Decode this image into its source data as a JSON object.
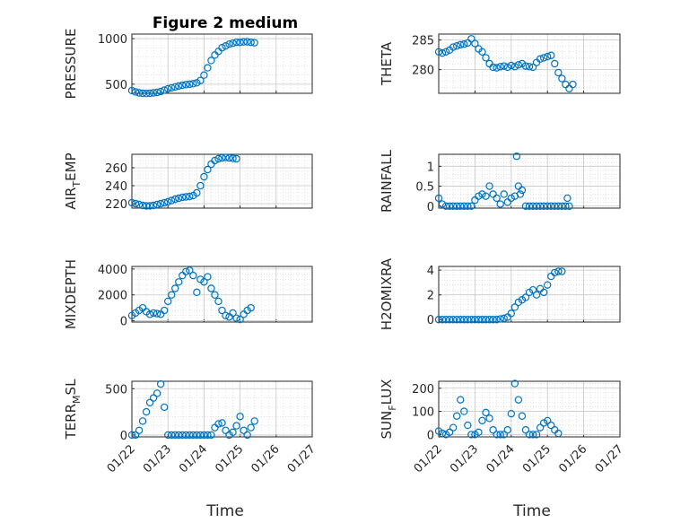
{
  "figure": {
    "title": "Figure 2 medium",
    "xlabel": "Time",
    "marker_color": "#0072BD",
    "grid": true,
    "x_tick_labels": [
      "01/22",
      "01/23",
      "01/24",
      "01/25",
      "01/26",
      "01/27"
    ]
  },
  "chart_data": [
    {
      "type": "scatter",
      "ylabel": "PRESSURE",
      "yticks": [
        500,
        1000
      ],
      "ylim": [
        400,
        1050
      ],
      "xlim": [
        0,
        5
      ],
      "points": [
        [
          0.0,
          430
        ],
        [
          0.1,
          415
        ],
        [
          0.2,
          405
        ],
        [
          0.3,
          400
        ],
        [
          0.4,
          398
        ],
        [
          0.5,
          400
        ],
        [
          0.6,
          405
        ],
        [
          0.7,
          410
        ],
        [
          0.8,
          420
        ],
        [
          0.9,
          435
        ],
        [
          1.0,
          450
        ],
        [
          1.1,
          460
        ],
        [
          1.2,
          470
        ],
        [
          1.3,
          480
        ],
        [
          1.4,
          488
        ],
        [
          1.5,
          495
        ],
        [
          1.6,
          500
        ],
        [
          1.7,
          505
        ],
        [
          1.8,
          515
        ],
        [
          1.9,
          540
        ],
        [
          2.0,
          600
        ],
        [
          2.1,
          680
        ],
        [
          2.2,
          760
        ],
        [
          2.3,
          820
        ],
        [
          2.4,
          860
        ],
        [
          2.5,
          900
        ],
        [
          2.6,
          920
        ],
        [
          2.7,
          940
        ],
        [
          2.8,
          950
        ],
        [
          2.9,
          960
        ],
        [
          3.0,
          960
        ],
        [
          3.1,
          965
        ],
        [
          3.2,
          965
        ],
        [
          3.3,
          960
        ],
        [
          3.4,
          955
        ]
      ]
    },
    {
      "type": "scatter",
      "ylabel": "THETA",
      "yticks": [
        280,
        285
      ],
      "ylim": [
        276,
        286
      ],
      "xlim": [
        0,
        5
      ],
      "points": [
        [
          0.0,
          283
        ],
        [
          0.1,
          282.8
        ],
        [
          0.2,
          283
        ],
        [
          0.3,
          283.3
        ],
        [
          0.4,
          283.8
        ],
        [
          0.5,
          284
        ],
        [
          0.6,
          284.2
        ],
        [
          0.7,
          284.3
        ],
        [
          0.8,
          284.5
        ],
        [
          0.9,
          285.2
        ],
        [
          1.0,
          284.4
        ],
        [
          1.1,
          283.5
        ],
        [
          1.2,
          283
        ],
        [
          1.3,
          282
        ],
        [
          1.4,
          281
        ],
        [
          1.5,
          280.4
        ],
        [
          1.6,
          280.3
        ],
        [
          1.7,
          280.5
        ],
        [
          1.8,
          280.6
        ],
        [
          1.9,
          280.4
        ],
        [
          2.0,
          280.7
        ],
        [
          2.1,
          280.5
        ],
        [
          2.2,
          280.8
        ],
        [
          2.3,
          281
        ],
        [
          2.4,
          280.6
        ],
        [
          2.5,
          280.5
        ],
        [
          2.6,
          280.4
        ],
        [
          2.7,
          281.2
        ],
        [
          2.8,
          281.8
        ],
        [
          2.9,
          282
        ],
        [
          3.0,
          282.2
        ],
        [
          3.1,
          282.4
        ],
        [
          3.2,
          281
        ],
        [
          3.3,
          279.5
        ],
        [
          3.4,
          278.5
        ],
        [
          3.5,
          277.5
        ],
        [
          3.6,
          276.8
        ],
        [
          3.7,
          277.5
        ]
      ]
    },
    {
      "type": "scatter",
      "ylabel": "AIR_TEMP",
      "yticks": [
        220,
        240,
        260
      ],
      "ylim": [
        215,
        275
      ],
      "xlim": [
        0,
        5
      ],
      "points": [
        [
          0.0,
          221
        ],
        [
          0.1,
          220
        ],
        [
          0.2,
          219
        ],
        [
          0.3,
          218
        ],
        [
          0.4,
          217.5
        ],
        [
          0.5,
          217.5
        ],
        [
          0.6,
          218
        ],
        [
          0.7,
          219
        ],
        [
          0.8,
          220
        ],
        [
          0.9,
          221
        ],
        [
          1.0,
          222
        ],
        [
          1.1,
          223.5
        ],
        [
          1.2,
          225
        ],
        [
          1.3,
          226
        ],
        [
          1.4,
          227
        ],
        [
          1.5,
          227.5
        ],
        [
          1.6,
          228
        ],
        [
          1.7,
          229
        ],
        [
          1.8,
          232
        ],
        [
          1.9,
          240
        ],
        [
          2.0,
          250
        ],
        [
          2.1,
          258
        ],
        [
          2.2,
          264
        ],
        [
          2.3,
          268
        ],
        [
          2.4,
          270
        ],
        [
          2.5,
          271
        ],
        [
          2.6,
          271.5
        ],
        [
          2.7,
          271
        ],
        [
          2.8,
          270.5
        ],
        [
          2.9,
          270
        ]
      ]
    },
    {
      "type": "scatter",
      "ylabel": "RAINFALL",
      "yticks": [
        0,
        0.5,
        1
      ],
      "ylim": [
        -0.05,
        1.3
      ],
      "xlim": [
        0,
        5
      ],
      "points": [
        [
          0.0,
          0.2
        ],
        [
          0.1,
          0.05
        ],
        [
          0.2,
          0
        ],
        [
          0.3,
          0
        ],
        [
          0.4,
          0
        ],
        [
          0.5,
          0
        ],
        [
          0.6,
          0
        ],
        [
          0.7,
          0
        ],
        [
          0.8,
          0
        ],
        [
          0.9,
          0
        ],
        [
          1.0,
          0.15
        ],
        [
          1.1,
          0.25
        ],
        [
          1.2,
          0.3
        ],
        [
          1.3,
          0.25
        ],
        [
          1.4,
          0.5
        ],
        [
          1.5,
          0.3
        ],
        [
          1.6,
          0.2
        ],
        [
          1.7,
          0.05
        ],
        [
          1.8,
          0.3
        ],
        [
          1.9,
          0.1
        ],
        [
          2.0,
          0.2
        ],
        [
          2.1,
          0.25
        ],
        [
          2.15,
          1.25
        ],
        [
          2.2,
          0.5
        ],
        [
          2.25,
          0.3
        ],
        [
          2.3,
          0.4
        ],
        [
          2.4,
          0
        ],
        [
          2.5,
          0
        ],
        [
          2.6,
          0
        ],
        [
          2.7,
          0
        ],
        [
          2.8,
          0
        ],
        [
          2.9,
          0
        ],
        [
          3.0,
          0
        ],
        [
          3.1,
          0
        ],
        [
          3.2,
          0
        ],
        [
          3.3,
          0
        ],
        [
          3.4,
          0
        ],
        [
          3.5,
          0
        ],
        [
          3.55,
          0.2
        ],
        [
          3.6,
          0
        ]
      ]
    },
    {
      "type": "scatter",
      "ylabel": "MIXDEPTH",
      "yticks": [
        0,
        2000,
        4000
      ],
      "ylim": [
        -100,
        4200
      ],
      "xlim": [
        0,
        5
      ],
      "points": [
        [
          0.0,
          400
        ],
        [
          0.1,
          600
        ],
        [
          0.2,
          800
        ],
        [
          0.3,
          1000
        ],
        [
          0.4,
          700
        ],
        [
          0.5,
          500
        ],
        [
          0.6,
          600
        ],
        [
          0.7,
          550
        ],
        [
          0.8,
          500
        ],
        [
          0.9,
          800
        ],
        [
          1.0,
          1500
        ],
        [
          1.1,
          2000
        ],
        [
          1.2,
          2500
        ],
        [
          1.3,
          3000
        ],
        [
          1.4,
          3500
        ],
        [
          1.5,
          3800
        ],
        [
          1.6,
          3900
        ],
        [
          1.7,
          3500
        ],
        [
          1.8,
          2200
        ],
        [
          1.9,
          3200
        ],
        [
          2.0,
          3000
        ],
        [
          2.1,
          3400
        ],
        [
          2.2,
          2500
        ],
        [
          2.3,
          2000
        ],
        [
          2.4,
          1500
        ],
        [
          2.5,
          800
        ],
        [
          2.6,
          400
        ],
        [
          2.7,
          300
        ],
        [
          2.8,
          600
        ],
        [
          2.9,
          200
        ],
        [
          3.0,
          100
        ],
        [
          3.1,
          500
        ],
        [
          3.2,
          800
        ],
        [
          3.3,
          1000
        ]
      ]
    },
    {
      "type": "scatter",
      "ylabel": "H2OMIXRA",
      "yticks": [
        0,
        2,
        4
      ],
      "ylim": [
        -0.2,
        4.3
      ],
      "xlim": [
        0,
        5
      ],
      "points": [
        [
          0.0,
          0
        ],
        [
          0.1,
          0
        ],
        [
          0.2,
          0
        ],
        [
          0.3,
          0
        ],
        [
          0.4,
          0
        ],
        [
          0.5,
          0
        ],
        [
          0.6,
          0
        ],
        [
          0.7,
          0
        ],
        [
          0.8,
          0
        ],
        [
          0.9,
          0
        ],
        [
          1.0,
          0
        ],
        [
          1.1,
          0
        ],
        [
          1.2,
          0
        ],
        [
          1.3,
          0
        ],
        [
          1.4,
          0
        ],
        [
          1.5,
          0
        ],
        [
          1.6,
          0
        ],
        [
          1.7,
          0.05
        ],
        [
          1.8,
          0.1
        ],
        [
          1.9,
          0.2
        ],
        [
          2.0,
          0.5
        ],
        [
          2.1,
          1.0
        ],
        [
          2.2,
          1.4
        ],
        [
          2.3,
          1.6
        ],
        [
          2.4,
          1.8
        ],
        [
          2.5,
          2.2
        ],
        [
          2.6,
          2.4
        ],
        [
          2.7,
          2.0
        ],
        [
          2.8,
          2.5
        ],
        [
          2.9,
          2.2
        ],
        [
          3.0,
          2.8
        ],
        [
          3.1,
          3.5
        ],
        [
          3.2,
          3.8
        ],
        [
          3.3,
          3.9
        ],
        [
          3.4,
          3.9
        ]
      ]
    },
    {
      "type": "scatter",
      "ylabel": "TERR_MSL",
      "yticks": [
        0,
        500
      ],
      "ylim": [
        -20,
        580
      ],
      "xlim": [
        0,
        5
      ],
      "points": [
        [
          0.0,
          0
        ],
        [
          0.1,
          0
        ],
        [
          0.2,
          50
        ],
        [
          0.3,
          150
        ],
        [
          0.4,
          250
        ],
        [
          0.5,
          350
        ],
        [
          0.6,
          400
        ],
        [
          0.7,
          450
        ],
        [
          0.8,
          550
        ],
        [
          0.9,
          300
        ],
        [
          1.0,
          0
        ],
        [
          1.1,
          0
        ],
        [
          1.2,
          0
        ],
        [
          1.3,
          0
        ],
        [
          1.4,
          0
        ],
        [
          1.5,
          0
        ],
        [
          1.6,
          0
        ],
        [
          1.7,
          0
        ],
        [
          1.8,
          0
        ],
        [
          1.9,
          0
        ],
        [
          2.0,
          0
        ],
        [
          2.1,
          0
        ],
        [
          2.2,
          0
        ],
        [
          2.3,
          80
        ],
        [
          2.4,
          120
        ],
        [
          2.5,
          130
        ],
        [
          2.6,
          50
        ],
        [
          2.7,
          0
        ],
        [
          2.8,
          30
        ],
        [
          2.9,
          100
        ],
        [
          3.0,
          200
        ],
        [
          3.1,
          50
        ],
        [
          3.2,
          0
        ],
        [
          3.3,
          80
        ],
        [
          3.4,
          150
        ]
      ]
    },
    {
      "type": "scatter",
      "ylabel": "SUN_FLUX",
      "yticks": [
        0,
        100,
        200
      ],
      "ylim": [
        -10,
        230
      ],
      "xlim": [
        0,
        5
      ],
      "points": [
        [
          0.0,
          15
        ],
        [
          0.1,
          5
        ],
        [
          0.2,
          0
        ],
        [
          0.3,
          10
        ],
        [
          0.4,
          30
        ],
        [
          0.5,
          80
        ],
        [
          0.6,
          150
        ],
        [
          0.7,
          100
        ],
        [
          0.8,
          40
        ],
        [
          0.9,
          0
        ],
        [
          1.0,
          0
        ],
        [
          1.1,
          10
        ],
        [
          1.2,
          60
        ],
        [
          1.3,
          95
        ],
        [
          1.4,
          70
        ],
        [
          1.5,
          20
        ],
        [
          1.6,
          0
        ],
        [
          1.7,
          0
        ],
        [
          1.8,
          0
        ],
        [
          1.9,
          20
        ],
        [
          2.0,
          90
        ],
        [
          2.1,
          220
        ],
        [
          2.2,
          150
        ],
        [
          2.3,
          80
        ],
        [
          2.4,
          20
        ],
        [
          2.5,
          0
        ],
        [
          2.6,
          0
        ],
        [
          2.7,
          0
        ],
        [
          2.8,
          30
        ],
        [
          2.9,
          50
        ],
        [
          3.0,
          60
        ],
        [
          3.1,
          40
        ],
        [
          3.2,
          20
        ],
        [
          3.3,
          5
        ]
      ]
    }
  ]
}
